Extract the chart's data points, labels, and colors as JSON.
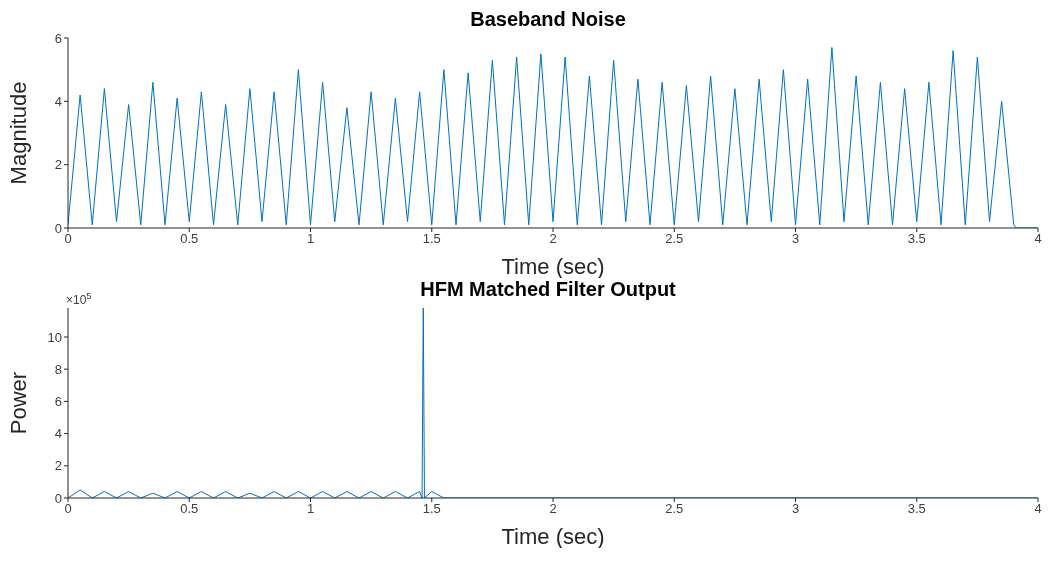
{
  "chart_data": [
    {
      "type": "line",
      "title": "Baseband Noise",
      "xlabel": "Time (sec)",
      "ylabel": "Magnitude",
      "xlim": [
        0,
        4
      ],
      "xticks": [
        0,
        0.5,
        1,
        1.5,
        2,
        2.5,
        3,
        3.5,
        4
      ],
      "ylim": [
        0,
        6
      ],
      "yticks": [
        0,
        2,
        4,
        6
      ],
      "grid": false,
      "legend": false,
      "marker": "none",
      "line_style": "solid",
      "series": [
        {
          "color": "#0072bd",
          "x": [
            0,
            0.05,
            0.1,
            0.15,
            0.2,
            0.25,
            0.3,
            0.35,
            0.4,
            0.45,
            0.5,
            0.55,
            0.6,
            0.65,
            0.7,
            0.75,
            0.8,
            0.85,
            0.9,
            0.95,
            1,
            1.05,
            1.1,
            1.15,
            1.2,
            1.25,
            1.3,
            1.35,
            1.4,
            1.45,
            1.5,
            1.55,
            1.6,
            1.65,
            1.7,
            1.75,
            1.8,
            1.85,
            1.9,
            1.95,
            2,
            2.05,
            2.1,
            2.15,
            2.2,
            2.25,
            2.3,
            2.35,
            2.4,
            2.45,
            2.5,
            2.55,
            2.6,
            2.65,
            2.7,
            2.75,
            2.8,
            2.85,
            2.9,
            2.95,
            3,
            3.05,
            3.1,
            3.15,
            3.2,
            3.25,
            3.3,
            3.35,
            3.4,
            3.45,
            3.5,
            3.55,
            3.6,
            3.65,
            3.7,
            3.75,
            3.8,
            3.85,
            3.9,
            3.91,
            4
          ],
          "values": [
            0.1,
            4.2,
            0.1,
            4.4,
            0.2,
            3.9,
            0.1,
            4.6,
            0.1,
            4.1,
            0.2,
            4.3,
            0.1,
            3.9,
            0.1,
            4.4,
            0.2,
            4.3,
            0.1,
            5.0,
            0.1,
            4.6,
            0.2,
            3.8,
            0.1,
            4.3,
            0.1,
            4.1,
            0.2,
            4.3,
            0.1,
            5.0,
            0.1,
            4.9,
            0.2,
            5.3,
            0.1,
            5.4,
            0.1,
            5.5,
            0.2,
            5.4,
            0.1,
            4.8,
            0.1,
            5.3,
            0.2,
            4.7,
            0.1,
            4.6,
            0.1,
            4.5,
            0.2,
            4.8,
            0.1,
            4.4,
            0.1,
            4.7,
            0.2,
            5.0,
            0.1,
            4.7,
            0.1,
            5.7,
            0.2,
            4.8,
            0.1,
            4.6,
            0.1,
            4.4,
            0.2,
            4.6,
            0.1,
            5.6,
            0.1,
            5.4,
            0.2,
            4.0,
            0.1,
            0,
            0
          ]
        }
      ]
    },
    {
      "type": "line",
      "title": "HFM Matched Filter Output",
      "xlabel": "Time (sec)",
      "ylabel": "Power",
      "annotations": [
        "×10$^{5}$"
      ],
      "xlim": [
        0,
        4
      ],
      "xticks": [
        0,
        0.5,
        1,
        1.5,
        2,
        2.5,
        3,
        3.5,
        4
      ],
      "ylim": [
        0,
        11.8
      ],
      "yticks": [
        0,
        2,
        4,
        6,
        8,
        10
      ],
      "grid": false,
      "legend": false,
      "marker": "none",
      "line_style": "solid",
      "series": [
        {
          "color": "#0072bd",
          "x": [
            0,
            0.05,
            0.1,
            0.15,
            0.2,
            0.25,
            0.3,
            0.35,
            0.4,
            0.45,
            0.5,
            0.55,
            0.6,
            0.65,
            0.7,
            0.75,
            0.8,
            0.85,
            0.9,
            0.95,
            1,
            1.05,
            1.1,
            1.15,
            1.2,
            1.25,
            1.3,
            1.35,
            1.4,
            1.45,
            1.46,
            1.465,
            1.47,
            1.5,
            1.55,
            4
          ],
          "values": [
            0,
            0.5,
            0,
            0.4,
            0,
            0.4,
            0,
            0.3,
            0,
            0.4,
            0,
            0.4,
            0,
            0.4,
            0,
            0.3,
            0,
            0.4,
            0,
            0.4,
            0,
            0.4,
            0,
            0.4,
            0,
            0.4,
            0,
            0.4,
            0,
            0.4,
            0,
            11.8,
            0,
            0.4,
            0,
            0
          ]
        }
      ]
    }
  ]
}
